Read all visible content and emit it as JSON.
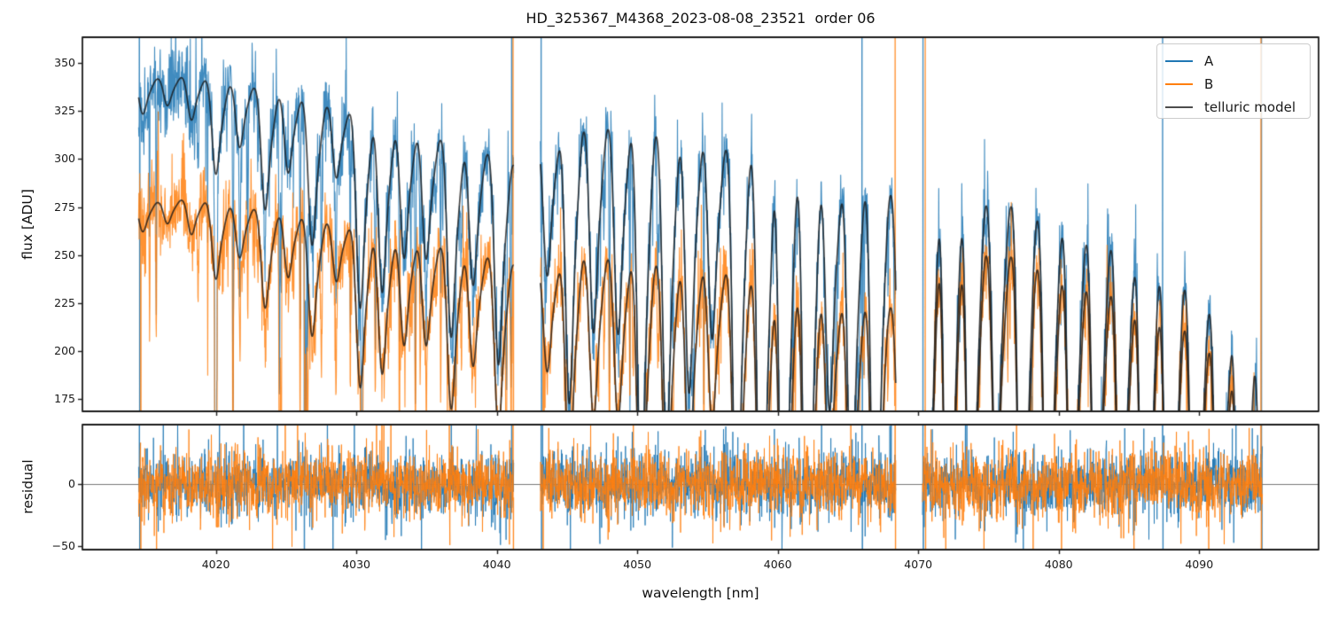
{
  "chart_data": {
    "type": "line",
    "title": "HD_325367_M4368_2023-08-08_23521  order 06",
    "xlabel": "wavelength [nm]",
    "xlim": [
      4010.5,
      4098.5
    ],
    "xticks": [
      4020,
      4030,
      4040,
      4050,
      4060,
      4070,
      4080,
      4090
    ],
    "panels": [
      {
        "name": "flux",
        "ylabel": "flux [ADU]",
        "ylim": [
          168.5,
          363.5
        ],
        "yticks": [
          175,
          200,
          225,
          250,
          275,
          300,
          325,
          350
        ],
        "zero_line": false
      },
      {
        "name": "residual",
        "ylabel": "residual",
        "ylim": [
          -53,
          48.5
        ],
        "yticks": [
          -50,
          0
        ],
        "zero_line": true
      }
    ],
    "legend": [
      {
        "label": "A",
        "color": "#1f77b4"
      },
      {
        "label": "B",
        "color": "#ff7f0e"
      },
      {
        "label": "telluric model",
        "color": "#4d4d4d"
      }
    ],
    "series_colors": {
      "A": "rgba(31,119,180,0.85)",
      "B": "rgba(255,127,14,0.85)",
      "model": "rgba(22,22,22,0.8)",
      "zero_line": "#777777"
    },
    "segments_nm": [
      [
        4014.5,
        4041.2
      ],
      [
        4043.1,
        4068.4
      ],
      [
        4070.3,
        4094.5
      ]
    ],
    "continuum_A": [
      [
        4014.5,
        342
      ],
      [
        4018,
        344
      ],
      [
        4022,
        340
      ],
      [
        4026,
        334
      ],
      [
        4030,
        327
      ],
      [
        4034,
        318
      ],
      [
        4038,
        310
      ],
      [
        4041.2,
        302
      ],
      [
        4043.1,
        312
      ],
      [
        4046,
        323
      ],
      [
        4050,
        322
      ],
      [
        4054,
        317
      ],
      [
        4058,
        311
      ],
      [
        4062,
        302
      ],
      [
        4066,
        294
      ],
      [
        4068.4,
        288
      ],
      [
        4070.3,
        288
      ],
      [
        4073,
        288
      ],
      [
        4077,
        282
      ],
      [
        4081,
        272
      ],
      [
        4084,
        263
      ],
      [
        4087,
        251
      ],
      [
        4090,
        239
      ],
      [
        4092.5,
        223
      ],
      [
        4094.5,
        205
      ]
    ],
    "continuum_B": [
      [
        4014.5,
        277
      ],
      [
        4018,
        280
      ],
      [
        4022,
        276
      ],
      [
        4026,
        272
      ],
      [
        4030,
        266
      ],
      [
        4034,
        260
      ],
      [
        4038,
        254
      ],
      [
        4041.2,
        249
      ],
      [
        4043.1,
        247
      ],
      [
        4046,
        254
      ],
      [
        4050,
        252
      ],
      [
        4054,
        249
      ],
      [
        4058,
        245
      ],
      [
        4062,
        240
      ],
      [
        4066,
        233
      ],
      [
        4068.4,
        228
      ],
      [
        4070.3,
        263
      ],
      [
        4073,
        261
      ],
      [
        4077,
        255
      ],
      [
        4081,
        246
      ],
      [
        4084,
        238
      ],
      [
        4087,
        228
      ],
      [
        4090,
        217
      ],
      [
        4092.5,
        202
      ],
      [
        4094.5,
        183
      ]
    ],
    "telluric": {
      "line_spacing_nm": 1.7,
      "line_sigma_nm": 0.26,
      "depth_at_4014": 0.035,
      "depth_slope_per_nm": 0.0122,
      "doublet_offset_nm": 0.52,
      "doublet_ratio": 0.3
    },
    "noise": {
      "sigma_flux_adu": 8.5,
      "sigma_residual": 12.5,
      "sharp_line_density_per_nm": 2.2,
      "spike_fraction": 0.09
    },
    "edge_spikes": [
      {
        "x": 4014.55,
        "series": "A",
        "type": "full"
      },
      {
        "x": 4014.65,
        "series": "B",
        "type": "down"
      },
      {
        "x": 4026.3,
        "series": "A",
        "type": "down"
      },
      {
        "x": 4041.05,
        "series": "A",
        "type": "up"
      },
      {
        "x": 4041.15,
        "series": "B",
        "type": "full"
      },
      {
        "x": 4043.15,
        "series": "A",
        "type": "full"
      },
      {
        "x": 4043.3,
        "series": "B",
        "type": "down"
      },
      {
        "x": 4066.0,
        "series": "A",
        "type": "full"
      },
      {
        "x": 4068.35,
        "series": "B",
        "type": "full"
      },
      {
        "x": 4070.35,
        "series": "A",
        "type": "full"
      },
      {
        "x": 4070.5,
        "series": "B",
        "type": "full"
      },
      {
        "x": 4087.4,
        "series": "A",
        "type": "full"
      },
      {
        "x": 4094.4,
        "series": "B",
        "type": "full"
      },
      {
        "x": 4094.45,
        "series": "A",
        "type": "full"
      }
    ],
    "sample_step_nm": 0.02,
    "seed": 42
  }
}
